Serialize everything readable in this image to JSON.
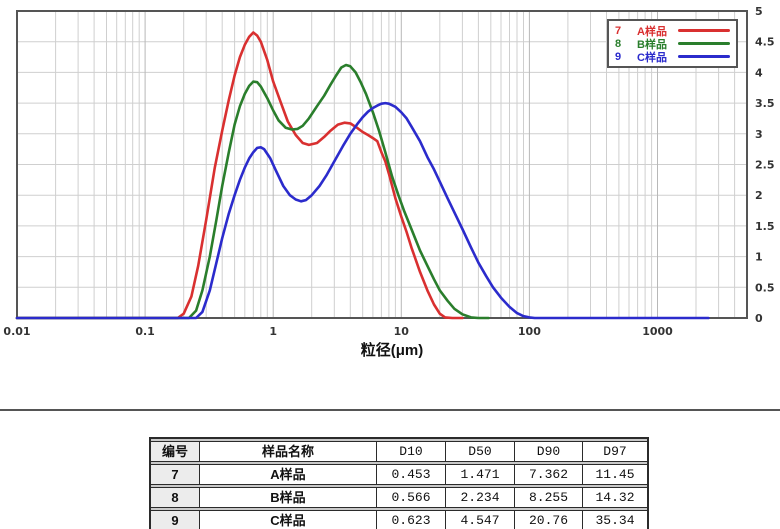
{
  "chart_data": {
    "type": "line",
    "title": "",
    "xlabel": "粒径(μm)",
    "ylabel": "",
    "x_scale": "log",
    "xlim": [
      0.01,
      5000
    ],
    "ylim": [
      0,
      5
    ],
    "grid": true,
    "legend_position": "top-right",
    "x_ticks": [
      {
        "value": 0.01,
        "label": "0.01"
      },
      {
        "value": 0.1,
        "label": "0.1"
      },
      {
        "value": 1,
        "label": "1"
      },
      {
        "value": 10,
        "label": "10"
      },
      {
        "value": 100,
        "label": "100"
      },
      {
        "value": 1000,
        "label": "1000"
      }
    ],
    "y_ticks": [
      {
        "value": 5,
        "label": "5"
      },
      {
        "value": 4.5,
        "label": "4.5"
      },
      {
        "value": 4,
        "label": "4"
      },
      {
        "value": 3.5,
        "label": "3.5"
      },
      {
        "value": 3,
        "label": "3"
      },
      {
        "value": 2.5,
        "label": "2.5"
      },
      {
        "value": 2,
        "label": "2"
      },
      {
        "value": 1.5,
        "label": "1.5"
      },
      {
        "value": 1,
        "label": "1"
      },
      {
        "value": 0.5,
        "label": "0.5"
      },
      {
        "value": 0,
        "label": "0"
      }
    ],
    "series": [
      {
        "id": "7",
        "name": "A样品",
        "color": "#d93030",
        "points": [
          [
            0.01,
            0
          ],
          [
            0.18,
            0
          ],
          [
            0.2,
            0.07
          ],
          [
            0.23,
            0.35
          ],
          [
            0.26,
            0.85
          ],
          [
            0.3,
            1.6
          ],
          [
            0.35,
            2.45
          ],
          [
            0.4,
            3.05
          ],
          [
            0.45,
            3.55
          ],
          [
            0.5,
            3.95
          ],
          [
            0.55,
            4.25
          ],
          [
            0.6,
            4.45
          ],
          [
            0.65,
            4.58
          ],
          [
            0.7,
            4.65
          ],
          [
            0.75,
            4.6
          ],
          [
            0.8,
            4.5
          ],
          [
            0.9,
            4.2
          ],
          [
            1.0,
            3.85
          ],
          [
            1.15,
            3.5
          ],
          [
            1.3,
            3.2
          ],
          [
            1.5,
            2.98
          ],
          [
            1.7,
            2.85
          ],
          [
            1.9,
            2.82
          ],
          [
            2.2,
            2.85
          ],
          [
            2.5,
            2.95
          ],
          [
            2.8,
            3.05
          ],
          [
            3.2,
            3.15
          ],
          [
            3.6,
            3.18
          ],
          [
            4.0,
            3.17
          ],
          [
            4.5,
            3.1
          ],
          [
            5.0,
            3.03
          ],
          [
            5.5,
            2.98
          ],
          [
            6.0,
            2.93
          ],
          [
            6.5,
            2.88
          ],
          [
            7.0,
            2.7
          ],
          [
            7.5,
            2.55
          ],
          [
            8.0,
            2.35
          ],
          [
            9.0,
            1.95
          ],
          [
            10,
            1.65
          ],
          [
            11,
            1.4
          ],
          [
            12,
            1.15
          ],
          [
            14,
            0.75
          ],
          [
            16,
            0.45
          ],
          [
            18,
            0.22
          ],
          [
            20,
            0.07
          ],
          [
            22,
            0.01
          ],
          [
            25,
            0
          ],
          [
            30,
            0
          ]
        ]
      },
      {
        "id": "8",
        "name": "B样品",
        "color": "#2a7e2c",
        "points": [
          [
            0.01,
            0
          ],
          [
            0.22,
            0
          ],
          [
            0.25,
            0.12
          ],
          [
            0.28,
            0.45
          ],
          [
            0.32,
            1.0
          ],
          [
            0.36,
            1.6
          ],
          [
            0.4,
            2.15
          ],
          [
            0.45,
            2.7
          ],
          [
            0.5,
            3.15
          ],
          [
            0.55,
            3.45
          ],
          [
            0.6,
            3.65
          ],
          [
            0.65,
            3.78
          ],
          [
            0.7,
            3.85
          ],
          [
            0.75,
            3.84
          ],
          [
            0.8,
            3.77
          ],
          [
            0.9,
            3.58
          ],
          [
            1.0,
            3.38
          ],
          [
            1.1,
            3.22
          ],
          [
            1.25,
            3.1
          ],
          [
            1.4,
            3.07
          ],
          [
            1.55,
            3.08
          ],
          [
            1.7,
            3.13
          ],
          [
            1.9,
            3.25
          ],
          [
            2.2,
            3.45
          ],
          [
            2.5,
            3.62
          ],
          [
            2.8,
            3.8
          ],
          [
            3.1,
            3.95
          ],
          [
            3.4,
            4.08
          ],
          [
            3.7,
            4.12
          ],
          [
            4.0,
            4.1
          ],
          [
            4.4,
            4.0
          ],
          [
            4.8,
            3.85
          ],
          [
            5.3,
            3.65
          ],
          [
            6.0,
            3.35
          ],
          [
            6.7,
            3.05
          ],
          [
            7.5,
            2.7
          ],
          [
            8.5,
            2.3
          ],
          [
            9.5,
            2.0
          ],
          [
            10.5,
            1.75
          ],
          [
            12,
            1.45
          ],
          [
            14,
            1.1
          ],
          [
            16,
            0.85
          ],
          [
            18,
            0.63
          ],
          [
            20,
            0.45
          ],
          [
            23,
            0.28
          ],
          [
            26,
            0.15
          ],
          [
            30,
            0.06
          ],
          [
            35,
            0.01
          ],
          [
            40,
            0
          ],
          [
            48,
            0
          ]
        ]
      },
      {
        "id": "9",
        "name": "C样品",
        "color": "#2b2bcc",
        "points": [
          [
            0.01,
            0
          ],
          [
            0.25,
            0
          ],
          [
            0.28,
            0.1
          ],
          [
            0.32,
            0.45
          ],
          [
            0.36,
            0.9
          ],
          [
            0.4,
            1.3
          ],
          [
            0.45,
            1.7
          ],
          [
            0.5,
            2.0
          ],
          [
            0.55,
            2.25
          ],
          [
            0.6,
            2.45
          ],
          [
            0.65,
            2.6
          ],
          [
            0.7,
            2.7
          ],
          [
            0.75,
            2.77
          ],
          [
            0.8,
            2.78
          ],
          [
            0.85,
            2.75
          ],
          [
            0.95,
            2.6
          ],
          [
            1.05,
            2.4
          ],
          [
            1.2,
            2.15
          ],
          [
            1.35,
            2.0
          ],
          [
            1.5,
            1.93
          ],
          [
            1.65,
            1.9
          ],
          [
            1.8,
            1.92
          ],
          [
            2.0,
            2.0
          ],
          [
            2.3,
            2.15
          ],
          [
            2.6,
            2.32
          ],
          [
            3.0,
            2.55
          ],
          [
            3.5,
            2.8
          ],
          [
            4.0,
            3.0
          ],
          [
            4.5,
            3.15
          ],
          [
            5.0,
            3.27
          ],
          [
            5.5,
            3.36
          ],
          [
            6.0,
            3.42
          ],
          [
            6.5,
            3.46
          ],
          [
            7.0,
            3.49
          ],
          [
            7.5,
            3.5
          ],
          [
            8.0,
            3.49
          ],
          [
            9.0,
            3.44
          ],
          [
            10,
            3.35
          ],
          [
            11,
            3.25
          ],
          [
            12,
            3.12
          ],
          [
            14,
            2.88
          ],
          [
            16,
            2.62
          ],
          [
            18,
            2.42
          ],
          [
            20,
            2.22
          ],
          [
            23,
            1.95
          ],
          [
            26,
            1.72
          ],
          [
            30,
            1.45
          ],
          [
            35,
            1.15
          ],
          [
            40,
            0.9
          ],
          [
            46,
            0.68
          ],
          [
            52,
            0.5
          ],
          [
            60,
            0.33
          ],
          [
            70,
            0.18
          ],
          [
            80,
            0.08
          ],
          [
            90,
            0.03
          ],
          [
            100,
            0.01
          ],
          [
            110,
            0
          ],
          [
            2500,
            0
          ]
        ]
      }
    ]
  },
  "table": {
    "headers": [
      "编号",
      "样品名称",
      "D10",
      "D50",
      "D90",
      "D97"
    ],
    "rows": [
      [
        "7",
        "A样品",
        "0.453",
        "1.471",
        "7.362",
        "11.45"
      ],
      [
        "8",
        "B样品",
        "0.566",
        "2.234",
        "8.255",
        "14.32"
      ],
      [
        "9",
        "C样品",
        "0.623",
        "4.547",
        "20.76",
        "35.34"
      ]
    ]
  },
  "colors": {
    "series_a": "#d93030",
    "series_b": "#2a7e2c",
    "series_c": "#2b2bcc",
    "plot_border": "#555555",
    "grid_major": "#b8b8b8",
    "grid_minor": "#cfcfcf",
    "header_id_text": "#dd1111"
  }
}
